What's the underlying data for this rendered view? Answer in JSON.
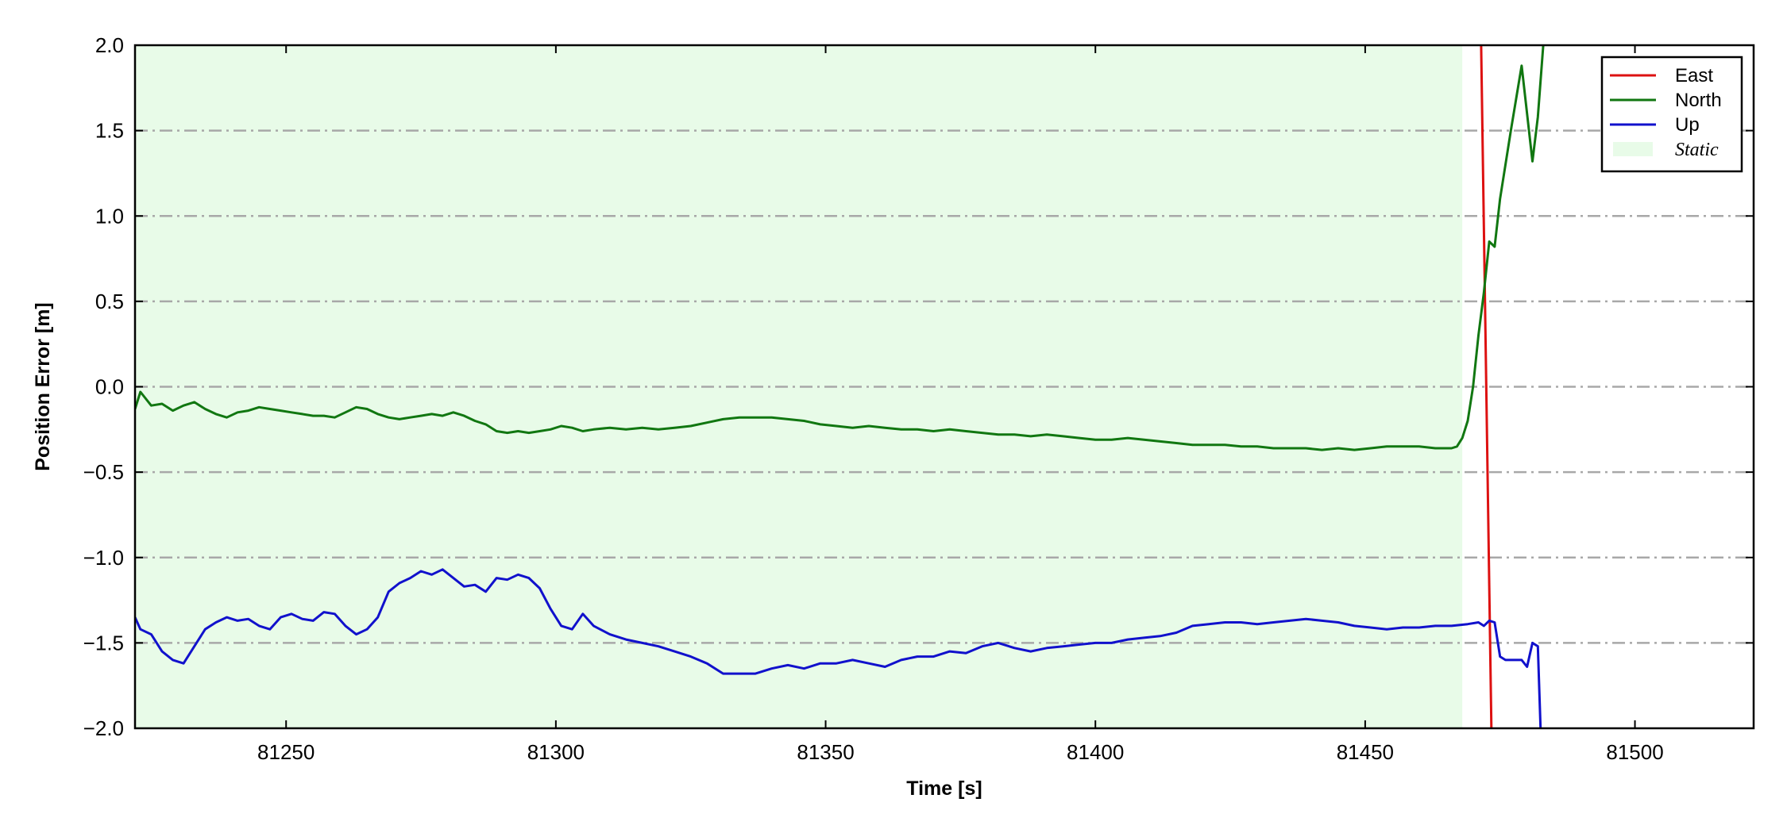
{
  "chart_data": {
    "type": "line",
    "xlabel": "Time [s]",
    "ylabel": "Position Error [m]",
    "xlim": [
      81222,
      81522
    ],
    "ylim": [
      -2.0,
      2.0
    ],
    "xticks": [
      81250,
      81300,
      81350,
      81400,
      81450,
      81500
    ],
    "xtick_labels": [
      "81250",
      "81300",
      "81350",
      "81400",
      "81450",
      "81500"
    ],
    "yticks": [
      2.0,
      1.5,
      1.0,
      0.5,
      0.0,
      -0.5,
      -1.0,
      -1.5,
      -2.0
    ],
    "ytick_labels": [
      "2.0",
      "1.5",
      "1.0",
      "0.5",
      "0.0",
      "−0.5",
      "−1.0",
      "−1.5",
      "−2.0"
    ],
    "grid": "horizontal dash-dot",
    "legend_position": "top-right",
    "shaded_region": {
      "name": "Static",
      "x_start": 81222,
      "x_end": 81468,
      "color": "#e8fbe8"
    },
    "series": [
      {
        "name": "East",
        "color": "#dd1111",
        "x": [
          81471.5,
          81473.4
        ],
        "y": [
          2.0,
          -2.0
        ]
      },
      {
        "name": "North",
        "color": "#117711",
        "x": [
          81222,
          81223,
          81225,
          81227,
          81229,
          81231,
          81233,
          81235,
          81237,
          81239,
          81241,
          81243,
          81245,
          81247,
          81249,
          81251,
          81253,
          81255,
          81257,
          81259,
          81261,
          81263,
          81265,
          81267,
          81269,
          81271,
          81273,
          81275,
          81277,
          81279,
          81281,
          81283,
          81285,
          81287,
          81289,
          81291,
          81293,
          81295,
          81297,
          81299,
          81301,
          81303,
          81305,
          81307,
          81310,
          81313,
          81316,
          81319,
          81322,
          81325,
          81328,
          81331,
          81334,
          81337,
          81340,
          81343,
          81346,
          81349,
          81352,
          81355,
          81358,
          81361,
          81364,
          81367,
          81370,
          81373,
          81376,
          81379,
          81382,
          81385,
          81388,
          81391,
          81394,
          81397,
          81400,
          81403,
          81406,
          81409,
          81412,
          81415,
          81418,
          81421,
          81424,
          81427,
          81430,
          81433,
          81436,
          81439,
          81442,
          81445,
          81448,
          81451,
          81454,
          81457,
          81460,
          81463,
          81466,
          81467,
          81468,
          81469,
          81470,
          81471,
          81472,
          81473,
          81474,
          81475,
          81477,
          81479,
          81481,
          81482,
          81483
        ],
        "y": [
          -0.13,
          -0.03,
          -0.11,
          -0.1,
          -0.14,
          -0.11,
          -0.09,
          -0.13,
          -0.16,
          -0.18,
          -0.15,
          -0.14,
          -0.12,
          -0.13,
          -0.14,
          -0.15,
          -0.16,
          -0.17,
          -0.17,
          -0.18,
          -0.15,
          -0.12,
          -0.13,
          -0.16,
          -0.18,
          -0.19,
          -0.18,
          -0.17,
          -0.16,
          -0.17,
          -0.15,
          -0.17,
          -0.2,
          -0.22,
          -0.26,
          -0.27,
          -0.26,
          -0.27,
          -0.26,
          -0.25,
          -0.23,
          -0.24,
          -0.26,
          -0.25,
          -0.24,
          -0.25,
          -0.24,
          -0.25,
          -0.24,
          -0.23,
          -0.21,
          -0.19,
          -0.18,
          -0.18,
          -0.18,
          -0.19,
          -0.2,
          -0.22,
          -0.23,
          -0.24,
          -0.23,
          -0.24,
          -0.25,
          -0.25,
          -0.26,
          -0.25,
          -0.26,
          -0.27,
          -0.28,
          -0.28,
          -0.29,
          -0.28,
          -0.29,
          -0.3,
          -0.31,
          -0.31,
          -0.3,
          -0.31,
          -0.32,
          -0.33,
          -0.34,
          -0.34,
          -0.34,
          -0.35,
          -0.35,
          -0.36,
          -0.36,
          -0.36,
          -0.37,
          -0.36,
          -0.37,
          -0.36,
          -0.35,
          -0.35,
          -0.35,
          -0.36,
          -0.36,
          -0.35,
          -0.3,
          -0.2,
          0.0,
          0.3,
          0.55,
          0.85,
          0.82,
          1.1,
          1.5,
          1.88,
          1.32,
          1.58,
          2.0
        ]
      },
      {
        "name": "Up",
        "color": "#1111cc",
        "x": [
          81222,
          81223,
          81225,
          81227,
          81229,
          81231,
          81233,
          81235,
          81237,
          81239,
          81241,
          81243,
          81245,
          81247,
          81249,
          81251,
          81253,
          81255,
          81257,
          81259,
          81261,
          81263,
          81265,
          81267,
          81269,
          81271,
          81273,
          81275,
          81277,
          81279,
          81281,
          81283,
          81285,
          81287,
          81289,
          81291,
          81293,
          81295,
          81297,
          81299,
          81301,
          81303,
          81305,
          81307,
          81310,
          81313,
          81316,
          81319,
          81322,
          81325,
          81328,
          81331,
          81334,
          81337,
          81340,
          81343,
          81346,
          81349,
          81352,
          81355,
          81358,
          81361,
          81364,
          81367,
          81370,
          81373,
          81376,
          81379,
          81382,
          81385,
          81388,
          81391,
          81394,
          81397,
          81400,
          81403,
          81406,
          81409,
          81412,
          81415,
          81418,
          81421,
          81424,
          81427,
          81430,
          81433,
          81436,
          81439,
          81442,
          81445,
          81448,
          81451,
          81454,
          81457,
          81460,
          81463,
          81466,
          81469,
          81471,
          81472,
          81473,
          81474,
          81475,
          81476,
          81478,
          81479,
          81480,
          81481,
          81482,
          81482.5
        ],
        "y": [
          -1.35,
          -1.42,
          -1.45,
          -1.55,
          -1.6,
          -1.62,
          -1.52,
          -1.42,
          -1.38,
          -1.35,
          -1.37,
          -1.36,
          -1.4,
          -1.42,
          -1.35,
          -1.33,
          -1.36,
          -1.37,
          -1.32,
          -1.33,
          -1.4,
          -1.45,
          -1.42,
          -1.35,
          -1.2,
          -1.15,
          -1.12,
          -1.08,
          -1.1,
          -1.07,
          -1.12,
          -1.17,
          -1.16,
          -1.2,
          -1.12,
          -1.13,
          -1.1,
          -1.12,
          -1.18,
          -1.3,
          -1.4,
          -1.42,
          -1.33,
          -1.4,
          -1.45,
          -1.48,
          -1.5,
          -1.52,
          -1.55,
          -1.58,
          -1.62,
          -1.68,
          -1.68,
          -1.68,
          -1.65,
          -1.63,
          -1.65,
          -1.62,
          -1.62,
          -1.6,
          -1.62,
          -1.64,
          -1.6,
          -1.58,
          -1.58,
          -1.55,
          -1.56,
          -1.52,
          -1.5,
          -1.53,
          -1.55,
          -1.53,
          -1.52,
          -1.51,
          -1.5,
          -1.5,
          -1.48,
          -1.47,
          -1.46,
          -1.44,
          -1.4,
          -1.39,
          -1.38,
          -1.38,
          -1.39,
          -1.38,
          -1.37,
          -1.36,
          -1.37,
          -1.38,
          -1.4,
          -1.41,
          -1.42,
          -1.41,
          -1.41,
          -1.4,
          -1.4,
          -1.39,
          -1.38,
          -1.4,
          -1.37,
          -1.38,
          -1.58,
          -1.6,
          -1.6,
          -1.6,
          -1.64,
          -1.5,
          -1.52,
          -2.0
        ]
      }
    ]
  }
}
